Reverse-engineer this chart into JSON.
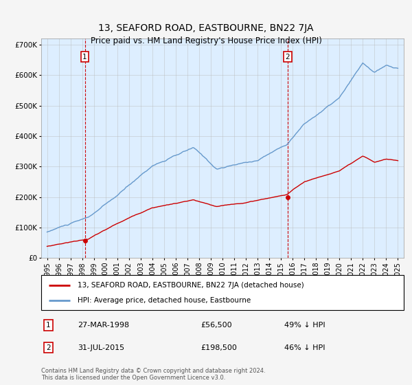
{
  "title": "13, SEAFORD ROAD, EASTBOURNE, BN22 7JA",
  "subtitle": "Price paid vs. HM Land Registry's House Price Index (HPI)",
  "background_color": "#f5f5f5",
  "plot_bg_color": "#ddeeff",
  "sale1_date_num": 1998.23,
  "sale1_price": 56500,
  "sale2_date_num": 2015.58,
  "sale2_price": 198500,
  "ylim": [
    0,
    720000
  ],
  "yticks": [
    0,
    100000,
    200000,
    300000,
    400000,
    500000,
    600000,
    700000
  ],
  "legend_label1": "13, SEAFORD ROAD, EASTBOURNE, BN22 7JA (detached house)",
  "legend_label2": "HPI: Average price, detached house, Eastbourne",
  "annot1_label": "1",
  "annot1_date": "27-MAR-1998",
  "annot1_price": "£56,500",
  "annot1_pct": "49% ↓ HPI",
  "annot2_label": "2",
  "annot2_date": "31-JUL-2015",
  "annot2_price": "£198,500",
  "annot2_pct": "46% ↓ HPI",
  "footer": "Contains HM Land Registry data © Crown copyright and database right 2024.\nThis data is licensed under the Open Government Licence v3.0.",
  "line1_color": "#cc0000",
  "line2_color": "#6699cc",
  "marker_color": "#cc0000",
  "vline_color": "#cc0000",
  "grid_color": "#bbbbbb"
}
